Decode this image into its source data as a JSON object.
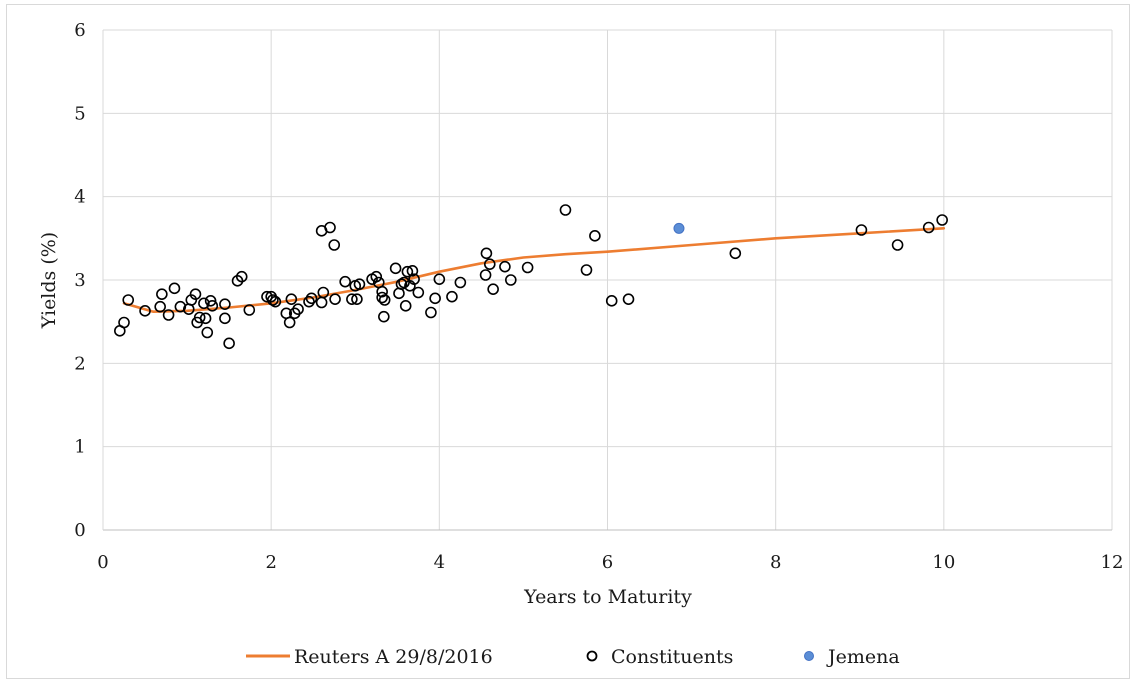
{
  "chart_data": {
    "type": "scatter",
    "title": "",
    "xlabel": "Years to Maturity",
    "ylabel": "Yields (%)",
    "xlim": [
      0,
      12
    ],
    "ylim": [
      0,
      6
    ],
    "xticks": [
      0,
      2,
      4,
      6,
      8,
      10,
      12
    ],
    "yticks": [
      0,
      1,
      2,
      3,
      4,
      5,
      6
    ],
    "x_tick_labels": [
      "0",
      "2",
      "4",
      "6",
      "8",
      "10",
      "12"
    ],
    "y_tick_labels": [
      "0",
      "1",
      "2",
      "3",
      "4",
      "5",
      "6"
    ],
    "grid": true,
    "legend_position": "bottom",
    "series": [
      {
        "name": "Reuters A 29/8/2016",
        "kind": "line",
        "color": "#ED7D31",
        "points": [
          [
            0.25,
            2.72
          ],
          [
            0.6,
            2.62
          ],
          [
            1.0,
            2.63
          ],
          [
            1.5,
            2.67
          ],
          [
            2.0,
            2.72
          ],
          [
            2.5,
            2.79
          ],
          [
            3.0,
            2.88
          ],
          [
            3.5,
            2.98
          ],
          [
            4.0,
            3.1
          ],
          [
            4.5,
            3.2
          ],
          [
            5.0,
            3.27
          ],
          [
            5.5,
            3.31
          ],
          [
            6.0,
            3.34
          ],
          [
            7.0,
            3.42
          ],
          [
            8.0,
            3.5
          ],
          [
            9.0,
            3.56
          ],
          [
            10.0,
            3.62
          ]
        ]
      },
      {
        "name": "Constituents",
        "kind": "scatter",
        "marker": "hollow-circle",
        "color": "#000000",
        "points": [
          [
            0.2,
            2.39
          ],
          [
            0.25,
            2.49
          ],
          [
            0.3,
            2.76
          ],
          [
            0.5,
            2.63
          ],
          [
            0.68,
            2.68
          ],
          [
            0.7,
            2.83
          ],
          [
            0.78,
            2.58
          ],
          [
            0.85,
            2.9
          ],
          [
            0.92,
            2.68
          ],
          [
            1.02,
            2.65
          ],
          [
            1.05,
            2.76
          ],
          [
            1.1,
            2.83
          ],
          [
            1.12,
            2.49
          ],
          [
            1.15,
            2.55
          ],
          [
            1.2,
            2.72
          ],
          [
            1.22,
            2.54
          ],
          [
            1.24,
            2.37
          ],
          [
            1.28,
            2.75
          ],
          [
            1.3,
            2.69
          ],
          [
            1.45,
            2.54
          ],
          [
            1.45,
            2.71
          ],
          [
            1.5,
            2.24
          ],
          [
            1.6,
            2.99
          ],
          [
            1.65,
            3.04
          ],
          [
            1.74,
            2.64
          ],
          [
            1.95,
            2.8
          ],
          [
            2.0,
            2.8
          ],
          [
            2.02,
            2.76
          ],
          [
            2.05,
            2.74
          ],
          [
            2.18,
            2.6
          ],
          [
            2.22,
            2.49
          ],
          [
            2.24,
            2.77
          ],
          [
            2.28,
            2.6
          ],
          [
            2.32,
            2.65
          ],
          [
            2.45,
            2.74
          ],
          [
            2.48,
            2.78
          ],
          [
            2.6,
            2.73
          ],
          [
            2.6,
            3.59
          ],
          [
            2.62,
            2.85
          ],
          [
            2.7,
            3.63
          ],
          [
            2.75,
            3.42
          ],
          [
            2.76,
            2.77
          ],
          [
            2.88,
            2.98
          ],
          [
            2.96,
            2.77
          ],
          [
            3.0,
            2.93
          ],
          [
            3.02,
            2.77
          ],
          [
            3.05,
            2.95
          ],
          [
            3.2,
            3.01
          ],
          [
            3.25,
            3.04
          ],
          [
            3.28,
            2.97
          ],
          [
            3.32,
            2.79
          ],
          [
            3.32,
            2.86
          ],
          [
            3.34,
            2.56
          ],
          [
            3.35,
            2.76
          ],
          [
            3.48,
            3.14
          ],
          [
            3.52,
            2.84
          ],
          [
            3.55,
            2.95
          ],
          [
            3.58,
            2.97
          ],
          [
            3.6,
            2.69
          ],
          [
            3.62,
            3.1
          ],
          [
            3.65,
            2.93
          ],
          [
            3.68,
            3.11
          ],
          [
            3.7,
            3.01
          ],
          [
            3.75,
            2.85
          ],
          [
            3.9,
            2.61
          ],
          [
            3.95,
            2.78
          ],
          [
            4.0,
            3.01
          ],
          [
            4.15,
            2.8
          ],
          [
            4.25,
            2.97
          ],
          [
            4.55,
            3.06
          ],
          [
            4.56,
            3.32
          ],
          [
            4.6,
            3.19
          ],
          [
            4.64,
            2.89
          ],
          [
            4.78,
            3.16
          ],
          [
            4.85,
            3.0
          ],
          [
            5.05,
            3.15
          ],
          [
            5.5,
            3.84
          ],
          [
            5.75,
            3.12
          ],
          [
            5.85,
            3.53
          ],
          [
            6.05,
            2.75
          ],
          [
            6.25,
            2.77
          ],
          [
            7.52,
            3.32
          ],
          [
            9.02,
            3.6
          ],
          [
            9.45,
            3.42
          ],
          [
            9.82,
            3.63
          ],
          [
            9.98,
            3.72
          ]
        ]
      },
      {
        "name": "Jemena",
        "kind": "scatter",
        "marker": "filled-circle",
        "color": "#5B8ED6",
        "points": [
          [
            6.85,
            3.62
          ]
        ]
      }
    ]
  }
}
